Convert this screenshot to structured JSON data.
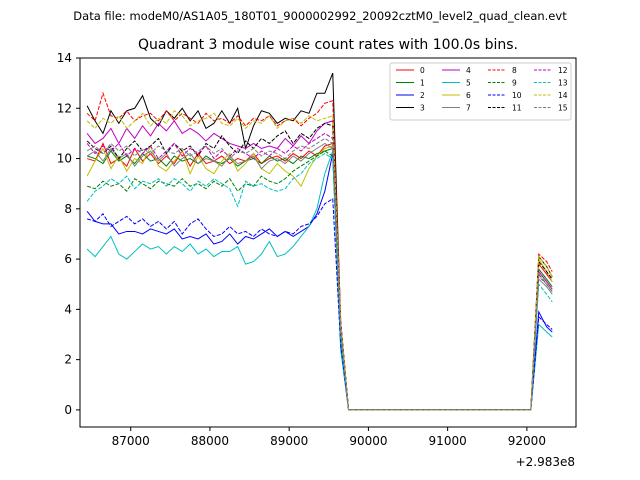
{
  "chart_data": {
    "type": "line",
    "suptitle": "Data file: modeM0/AS1A05_180T01_9000002992_20092cztM0_level2_quad_clean.evt",
    "title": "Quadrant 3 module wise count rates with 100.0s bins.",
    "xlabel": "",
    "ylabel": "",
    "x_offset_label": "+2.983e8",
    "xlim": [
      86360,
      92620
    ],
    "ylim": [
      -0.68,
      14.0
    ],
    "x_ticks": [
      87000,
      88000,
      89000,
      90000,
      91000,
      92000
    ],
    "x_tick_labels": [
      "87000",
      "88000",
      "89000",
      "90000",
      "91000",
      "92000"
    ],
    "y_ticks": [
      0,
      2,
      4,
      6,
      8,
      10,
      12,
      14
    ],
    "y_tick_labels": [
      "0",
      "2",
      "4",
      "6",
      "8",
      "10",
      "12",
      "14"
    ],
    "grid": false,
    "legend_position": "upper-right",
    "legend_columns": 4,
    "x_samples": [
      86450,
      86550,
      86650,
      86750,
      86850,
      86950,
      87050,
      87150,
      87250,
      87350,
      87450,
      87550,
      87650,
      87750,
      87850,
      87950,
      88050,
      88150,
      88250,
      88350,
      88450,
      88550,
      88650,
      88750,
      88850,
      88950,
      89050,
      89150,
      89250,
      89350,
      89450,
      89550,
      89650,
      89750,
      89850,
      89950,
      92050,
      92150,
      92250,
      92320
    ],
    "series": [
      {
        "name": "0",
        "color": "#ff0000",
        "dash": "solid",
        "values": [
          10.0,
          9.9,
          10.6,
          9.8,
          10.0,
          9.7,
          10.4,
          9.9,
          10.2,
          9.8,
          10.1,
          9.8,
          10.3,
          9.7,
          10.2,
          9.8,
          9.9,
          10.1,
          9.8,
          10.0,
          9.9,
          10.2,
          9.8,
          10.0,
          10.1,
          9.9,
          10.2,
          10.0,
          10.3,
          10.1,
          10.5,
          10.6,
          3.0,
          0.0,
          0.0,
          0.0,
          0.0,
          5.8,
          5.4,
          5.1
        ]
      },
      {
        "name": "1",
        "color": "#008000",
        "dash": "solid",
        "values": [
          10.1,
          10.0,
          9.8,
          10.3,
          9.9,
          10.1,
          9.8,
          10.2,
          9.9,
          10.0,
          9.7,
          10.1,
          9.9,
          10.0,
          9.8,
          10.1,
          9.9,
          9.8,
          10.0,
          9.7,
          9.9,
          10.0,
          9.8,
          10.1,
          9.9,
          10.0,
          9.8,
          10.1,
          10.0,
          10.2,
          10.3,
          10.4,
          3.0,
          0.0,
          0.0,
          0.0,
          0.0,
          5.6,
          5.2,
          4.9
        ]
      },
      {
        "name": "2",
        "color": "#0000ff",
        "dash": "solid",
        "values": [
          7.9,
          7.5,
          7.4,
          7.4,
          7.0,
          7.1,
          7.1,
          7.0,
          7.2,
          7.1,
          7.0,
          7.2,
          6.8,
          6.9,
          6.8,
          7.0,
          6.6,
          6.7,
          7.0,
          6.6,
          6.9,
          6.8,
          7.0,
          7.2,
          6.9,
          7.1,
          6.9,
          7.1,
          7.3,
          7.8,
          8.7,
          10.2,
          2.5,
          0.0,
          0.0,
          0.0,
          0.0,
          3.9,
          3.3,
          3.1
        ]
      },
      {
        "name": "3",
        "color": "#000000",
        "dash": "solid",
        "values": [
          12.1,
          11.5,
          11.0,
          11.9,
          11.4,
          11.9,
          12.0,
          12.5,
          11.6,
          11.3,
          11.9,
          11.6,
          12.0,
          11.5,
          11.9,
          11.2,
          11.4,
          11.9,
          11.4,
          12.0,
          10.4,
          11.3,
          11.9,
          11.8,
          11.4,
          11.6,
          11.5,
          11.9,
          11.8,
          12.6,
          12.6,
          13.4,
          3.5,
          0.0,
          0.0,
          0.0,
          0.0,
          6.1,
          5.7,
          5.3
        ]
      },
      {
        "name": "4",
        "color": "#bf00bf",
        "dash": "solid",
        "values": [
          11.0,
          10.6,
          10.8,
          11.2,
          10.6,
          11.2,
          10.8,
          11.3,
          10.9,
          11.4,
          11.1,
          11.5,
          11.0,
          11.2,
          11.0,
          10.7,
          11.0,
          10.8,
          10.6,
          10.5,
          10.4,
          10.6,
          10.4,
          10.5,
          10.4,
          10.8,
          10.5,
          10.9,
          10.6,
          11.1,
          11.4,
          11.5,
          3.3,
          0.0,
          0.0,
          0.0,
          0.0,
          5.5,
          5.1,
          4.8
        ]
      },
      {
        "name": "5",
        "color": "#00bfbf",
        "dash": "solid",
        "values": [
          6.4,
          6.1,
          6.5,
          6.9,
          6.2,
          6.0,
          6.3,
          6.6,
          6.4,
          6.5,
          6.2,
          6.5,
          6.3,
          6.6,
          6.2,
          6.4,
          6.1,
          6.3,
          6.3,
          6.5,
          5.8,
          5.9,
          6.2,
          6.7,
          6.1,
          6.2,
          6.5,
          6.9,
          7.3,
          8.0,
          9.4,
          10.3,
          2.4,
          0.0,
          0.0,
          0.0,
          0.0,
          3.4,
          3.1,
          2.9
        ]
      },
      {
        "name": "6",
        "color": "#bfbf00",
        "dash": "solid",
        "values": [
          9.3,
          9.9,
          10.4,
          9.6,
          10.1,
          9.5,
          10.0,
          9.8,
          10.5,
          9.7,
          9.5,
          9.9,
          10.3,
          9.4,
          10.1,
          9.6,
          9.4,
          9.9,
          10.2,
          9.5,
          9.8,
          10.2,
          9.6,
          9.4,
          9.8,
          9.5,
          9.3,
          8.9,
          9.6,
          10.1,
          10.4,
          10.5,
          3.0,
          0.0,
          0.0,
          0.0,
          0.0,
          6.0,
          5.5,
          5.1
        ]
      },
      {
        "name": "7",
        "color": "#808080",
        "dash": "solid",
        "values": [
          10.1,
          10.3,
          9.9,
          10.4,
          10.0,
          10.2,
          9.7,
          10.1,
          10.3,
          9.9,
          10.2,
          9.7,
          10.0,
          10.2,
          9.8,
          10.0,
          9.9,
          9.7,
          10.1,
          9.8,
          9.9,
          10.1,
          9.6,
          9.9,
          10.0,
          9.8,
          10.1,
          9.9,
          10.2,
          10.4,
          10.6,
          10.4,
          3.2,
          0.0,
          0.0,
          0.0,
          0.0,
          5.2,
          4.9,
          4.6
        ]
      },
      {
        "name": "8",
        "color": "#ff0000",
        "dash": "dashed",
        "values": [
          11.8,
          11.5,
          12.6,
          11.7,
          11.6,
          11.9,
          11.5,
          11.7,
          11.8,
          11.5,
          11.9,
          11.5,
          11.8,
          11.6,
          11.4,
          11.8,
          11.5,
          11.6,
          11.4,
          11.7,
          11.3,
          11.6,
          11.5,
          11.7,
          11.3,
          11.5,
          11.6,
          11.3,
          11.6,
          11.8,
          12.2,
          12.3,
          3.6,
          0.0,
          0.0,
          0.0,
          0.0,
          6.2,
          5.9,
          5.5
        ]
      },
      {
        "name": "9",
        "color": "#008000",
        "dash": "dashed",
        "values": [
          8.9,
          8.8,
          9.1,
          8.9,
          9.0,
          8.7,
          9.2,
          9.0,
          8.8,
          9.1,
          9.0,
          8.9,
          9.2,
          8.9,
          9.0,
          8.8,
          9.1,
          8.9,
          9.2,
          8.7,
          9.0,
          8.9,
          9.3,
          9.1,
          9.0,
          9.2,
          9.5,
          9.7,
          9.9,
          10.1,
          10.3,
          10.1,
          3.0,
          0.0,
          0.0,
          0.0,
          0.0,
          5.4,
          5.0,
          4.7
        ]
      },
      {
        "name": "10",
        "color": "#0000ff",
        "dash": "dashed",
        "values": [
          7.6,
          7.5,
          7.8,
          7.3,
          7.5,
          7.7,
          7.4,
          7.6,
          7.3,
          7.5,
          7.2,
          7.5,
          7.0,
          7.4,
          7.6,
          7.2,
          6.9,
          7.0,
          7.3,
          7.0,
          7.1,
          6.9,
          7.2,
          7.0,
          6.9,
          7.1,
          7.0,
          7.3,
          7.4,
          7.7,
          8.2,
          8.4,
          2.6,
          0.0,
          0.0,
          0.0,
          0.0,
          3.7,
          3.4,
          3.2
        ]
      },
      {
        "name": "11",
        "color": "#000000",
        "dash": "dashed",
        "values": [
          10.7,
          10.4,
          10.2,
          10.5,
          10.0,
          10.4,
          10.7,
          10.3,
          10.5,
          10.8,
          10.2,
          10.6,
          10.3,
          10.5,
          10.1,
          10.6,
          10.4,
          10.9,
          10.5,
          10.2,
          10.7,
          10.4,
          10.8,
          10.6,
          10.9,
          11.1,
          10.6,
          11.0,
          10.8,
          11.2,
          11.4,
          11.3,
          3.4,
          0.0,
          0.0,
          0.0,
          0.0,
          5.9,
          5.5,
          5.2
        ]
      },
      {
        "name": "12",
        "color": "#bf00bf",
        "dash": "dashed",
        "values": [
          10.6,
          10.2,
          10.5,
          10.3,
          10.6,
          10.1,
          10.4,
          10.2,
          10.5,
          10.0,
          10.3,
          10.6,
          10.1,
          10.4,
          10.2,
          10.5,
          10.0,
          10.3,
          10.1,
          10.4,
          10.2,
          10.0,
          10.3,
          10.1,
          10.4,
          10.2,
          10.5,
          10.3,
          10.6,
          10.8,
          11.0,
          10.8,
          3.3,
          0.0,
          0.0,
          0.0,
          0.0,
          5.5,
          5.1,
          4.8
        ]
      },
      {
        "name": "13",
        "color": "#00bfbf",
        "dash": "dashed",
        "values": [
          8.3,
          8.7,
          8.9,
          9.2,
          9.0,
          9.3,
          8.8,
          9.1,
          9.0,
          9.2,
          8.9,
          9.2,
          9.0,
          8.7,
          9.1,
          8.9,
          9.2,
          9.0,
          8.8,
          8.1,
          9.1,
          8.9,
          9.0,
          8.8,
          8.7,
          8.8,
          9.2,
          9.4,
          9.8,
          10.0,
          10.2,
          10.0,
          2.9,
          0.0,
          0.0,
          0.0,
          0.0,
          5.0,
          4.6,
          4.3
        ]
      },
      {
        "name": "14",
        "color": "#bfbf00",
        "dash": "dashed",
        "values": [
          11.5,
          11.2,
          11.6,
          11.4,
          11.7,
          11.2,
          11.5,
          11.8,
          11.3,
          11.6,
          11.4,
          11.9,
          11.7,
          11.3,
          11.5,
          11.6,
          11.8,
          11.4,
          11.3,
          11.6,
          11.2,
          11.5,
          11.4,
          11.7,
          11.2,
          11.5,
          11.6,
          11.4,
          11.7,
          11.5,
          11.6,
          11.7,
          3.5,
          0.0,
          0.0,
          0.0,
          0.0,
          6.1,
          5.7,
          5.3
        ]
      },
      {
        "name": "15",
        "color": "#808080",
        "dash": "dashed",
        "values": [
          10.3,
          10.5,
          10.2,
          10.6,
          10.3,
          10.5,
          10.1,
          10.4,
          10.2,
          10.5,
          10.3,
          10.2,
          10.4,
          10.1,
          10.3,
          10.5,
          10.2,
          10.4,
          10.0,
          10.3,
          10.2,
          10.4,
          10.1,
          10.3,
          10.2,
          10.0,
          10.3,
          10.5,
          10.4,
          10.6,
          10.8,
          10.6,
          3.2,
          0.0,
          0.0,
          0.0,
          0.0,
          5.3,
          5.0,
          4.7
        ]
      }
    ]
  }
}
